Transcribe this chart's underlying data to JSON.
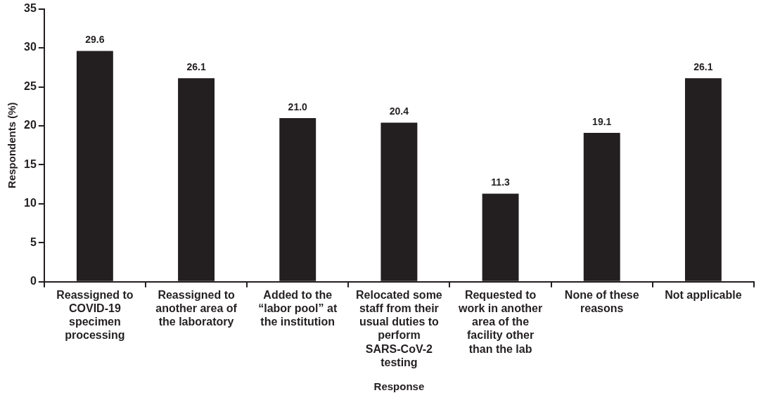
{
  "chart_data": {
    "type": "bar",
    "xlabel": "Response",
    "ylabel": "Respondents (%)",
    "categories": [
      "Reassigned to COVID-19 specimen processing",
      "Reassigned to another area of the laboratory",
      "Added to the “labor pool” at the institution",
      "Relocated some staff from their usual duties to perform SARS-CoV-2 testing",
      "Requested to work in another area of the facility other than the lab",
      "None of these reasons",
      "Not applicable"
    ],
    "values": [
      29.6,
      26.1,
      21.0,
      20.4,
      11.3,
      19.1,
      26.1
    ],
    "value_labels": [
      "29.6",
      "26.1",
      "21.0",
      "20.4",
      "11.3",
      "19.1",
      "26.1"
    ],
    "color": "#231f20",
    "ylim": [
      0,
      35
    ],
    "yticks": [
      0,
      5,
      10,
      15,
      20,
      25,
      30,
      35
    ],
    "grid": false,
    "legend": false
  }
}
